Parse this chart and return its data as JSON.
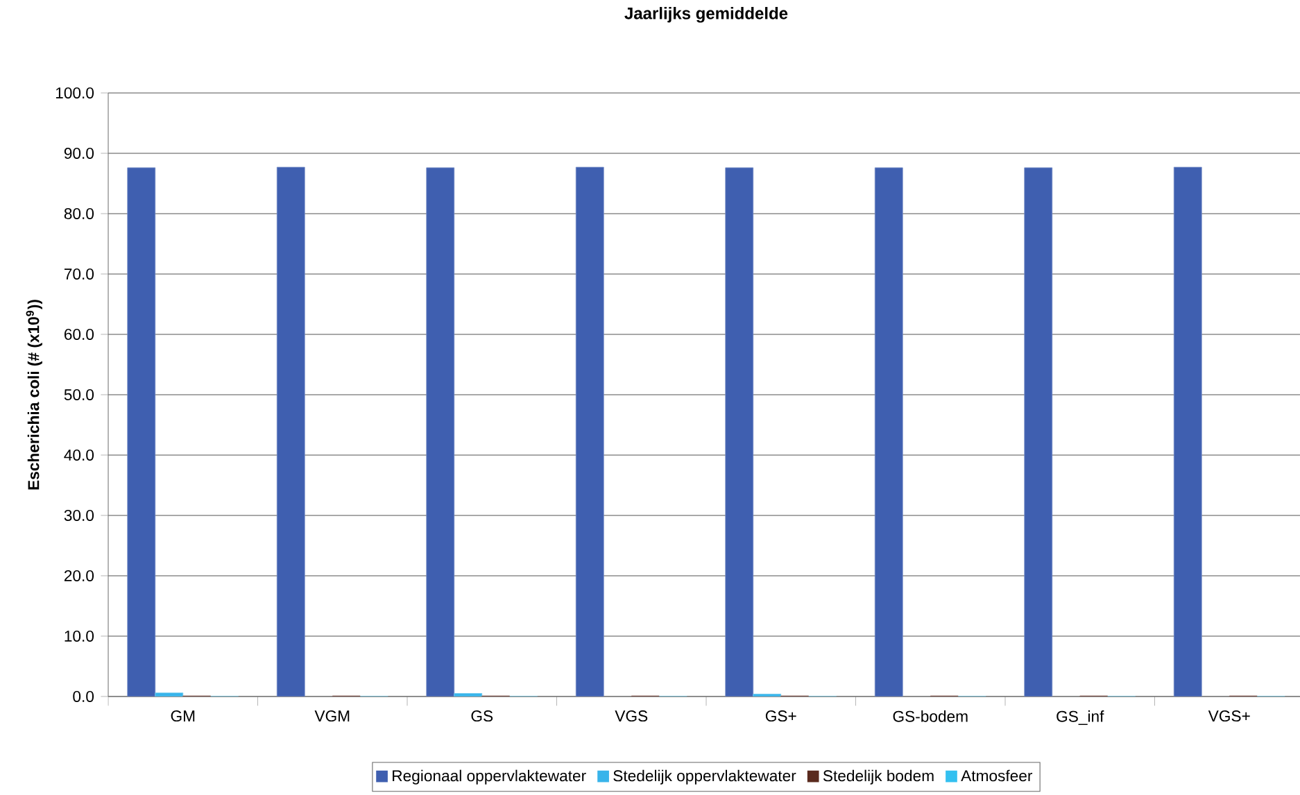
{
  "chart_data": {
    "type": "bar",
    "title": "Jaarlijks gemiddelde",
    "ylabel": "Escherichia coli (# (x10$^{9}$))",
    "categories": [
      "GM",
      "VGM",
      "GS",
      "VGS",
      "GS+",
      "GS-bodem",
      "GS_inf",
      "VGS+"
    ],
    "series": [
      {
        "name": "Regionaal oppervlaktewater",
        "color": "#3f5fb0",
        "values": [
          87.6,
          87.7,
          87.6,
          87.7,
          87.6,
          87.6,
          87.6,
          87.7
        ]
      },
      {
        "name": "Stedelijk oppervlaktewater",
        "color": "#38b4ea",
        "values": [
          0.6,
          null,
          0.5,
          null,
          0.4,
          null,
          null,
          null
        ]
      },
      {
        "name": "Stedelijk bodem",
        "color": "#5a2a1e",
        "values": [
          0.1,
          0.1,
          0.1,
          0.1,
          0.1,
          0.1,
          0.1,
          0.1
        ]
      },
      {
        "name": "Atmosfeer",
        "color": "#33c0f0",
        "values": [
          0.0,
          0.0,
          0.0,
          0.0,
          0.0,
          0.0,
          0.0,
          0.0
        ]
      }
    ],
    "ylim": [
      0,
      100
    ],
    "yticks": [
      {
        "value": 0,
        "label": "0.0"
      },
      {
        "value": 10,
        "label": "10.0"
      },
      {
        "value": 20,
        "label": "20.0"
      },
      {
        "value": 30,
        "label": "30.0"
      },
      {
        "value": 40,
        "label": "40.0"
      },
      {
        "value": 50,
        "label": "50.0"
      },
      {
        "value": 60,
        "label": "60.0"
      },
      {
        "value": 70,
        "label": "70.0"
      },
      {
        "value": 80,
        "label": "80.0"
      },
      {
        "value": 90,
        "label": "90.0"
      },
      {
        "value": 100,
        "label": "100.0"
      }
    ],
    "grid": "y",
    "legend": "bottom"
  }
}
